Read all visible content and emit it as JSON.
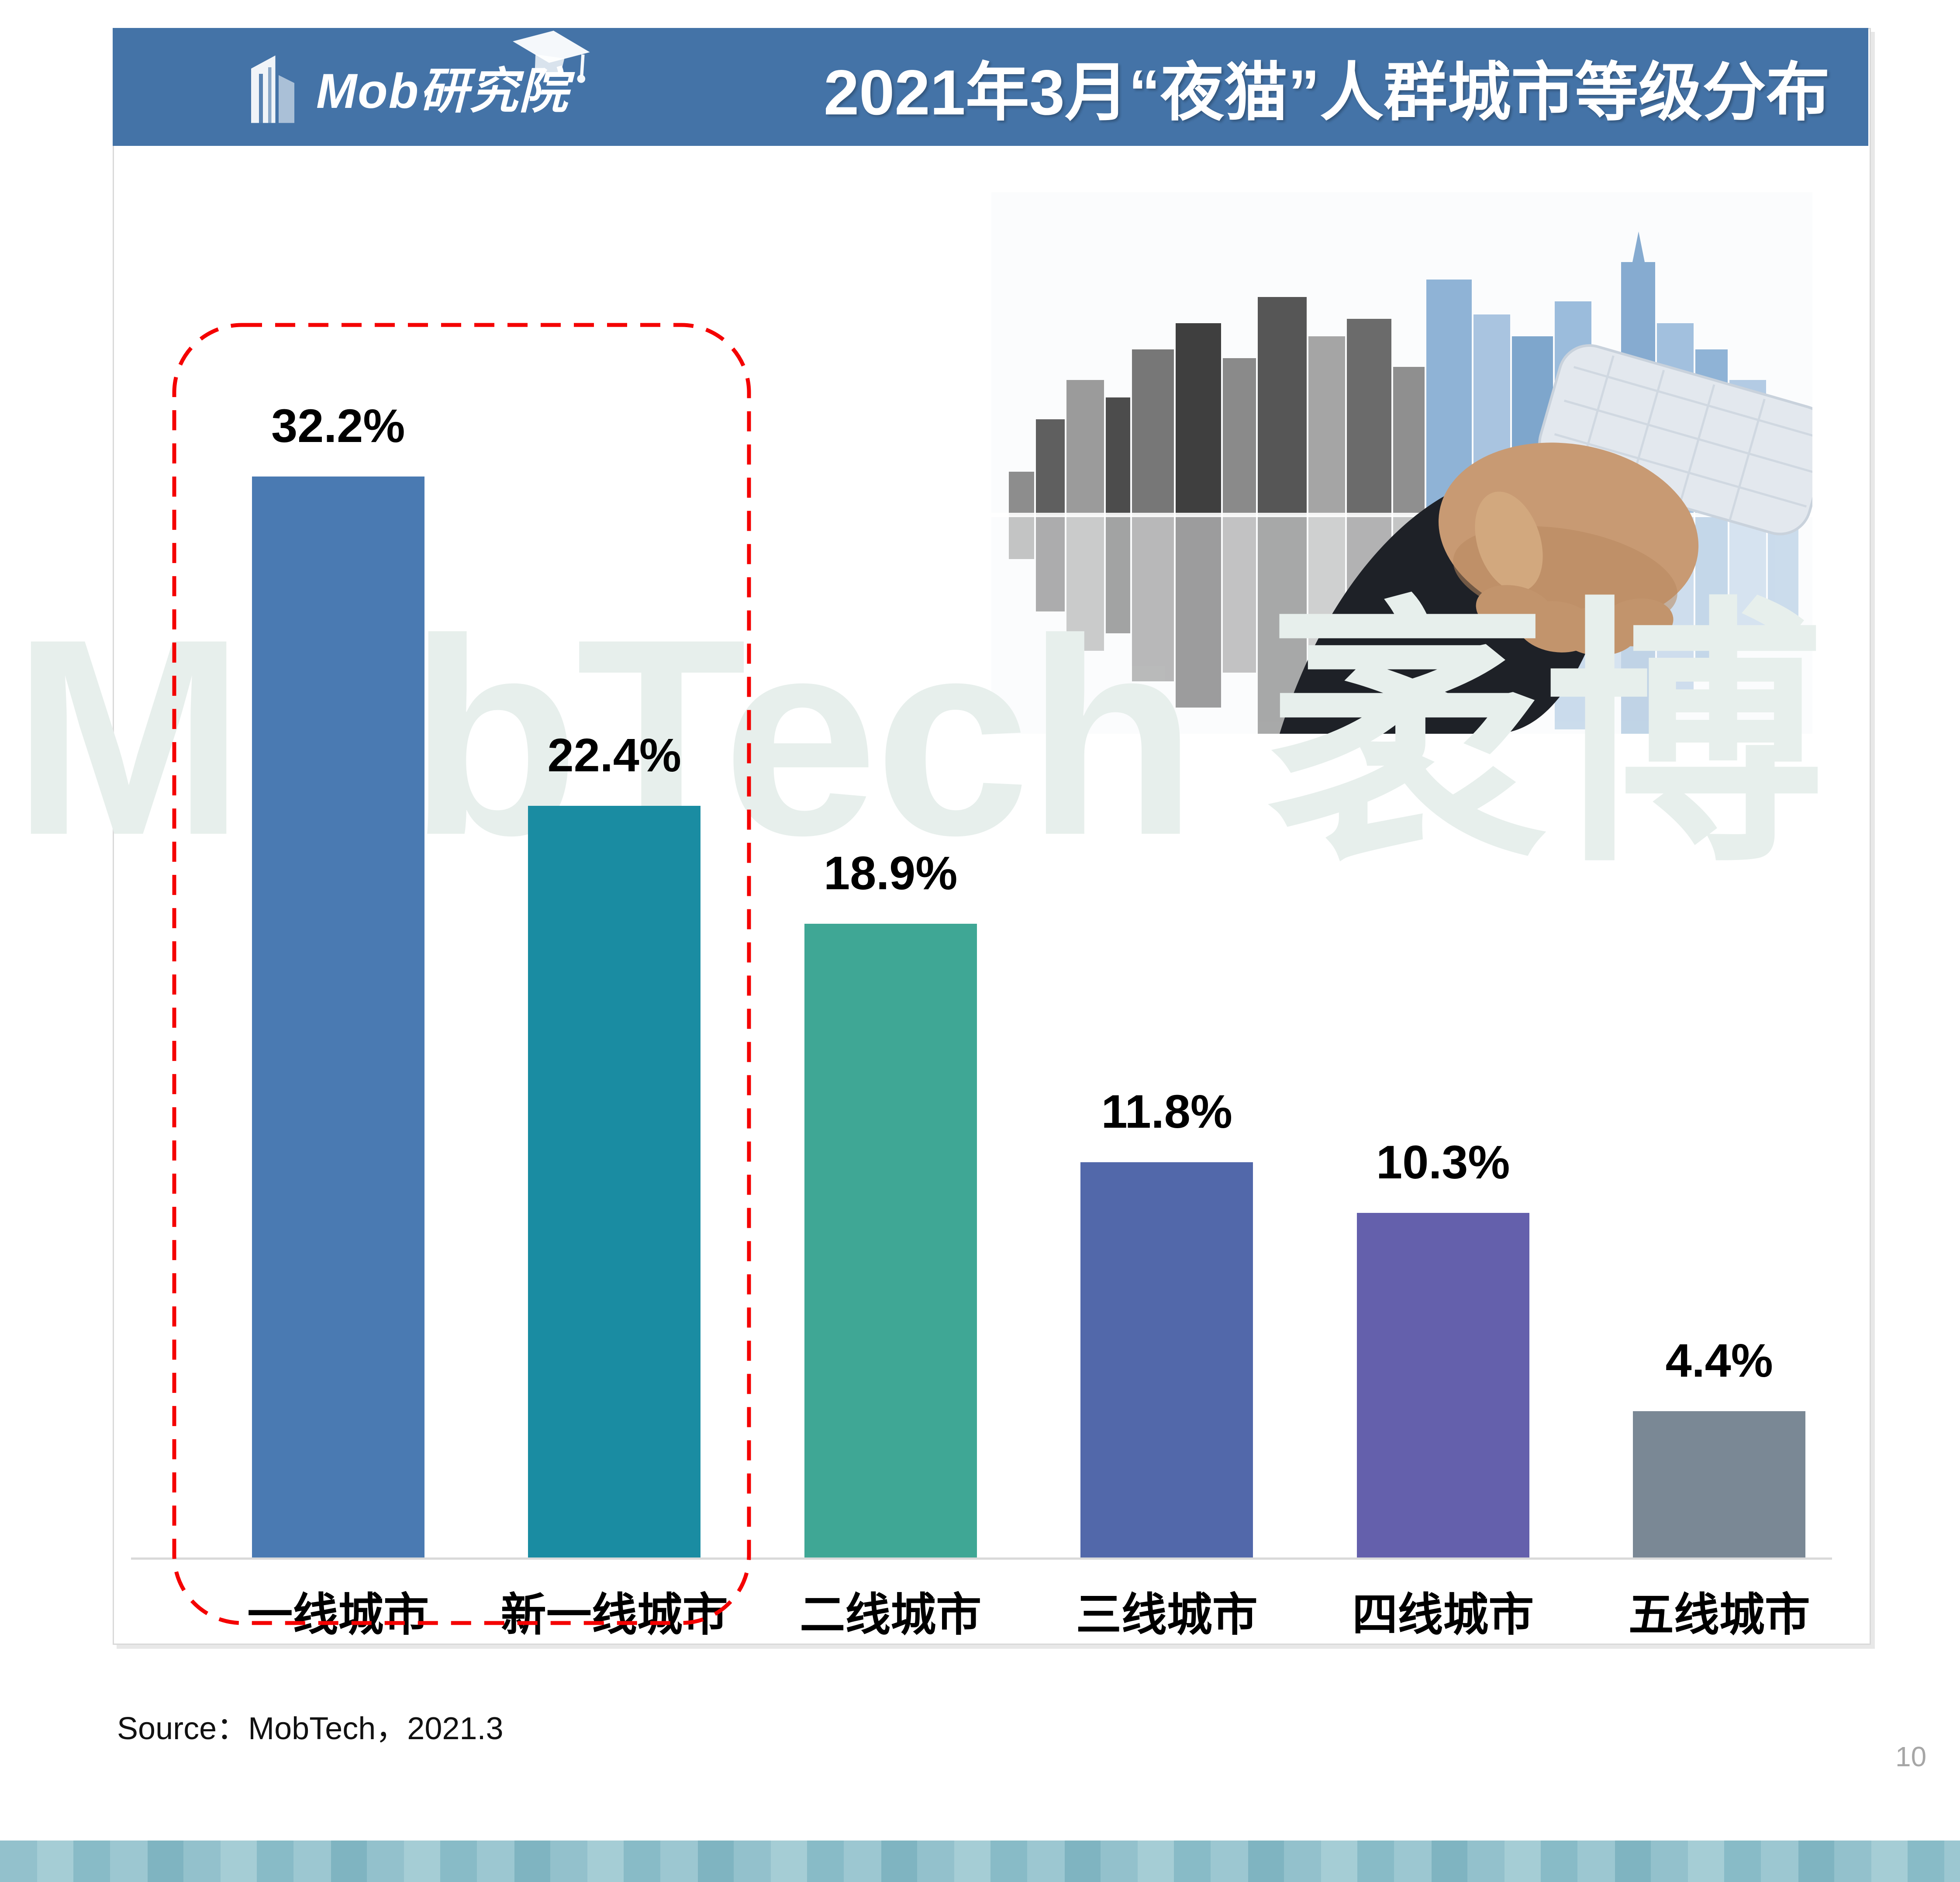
{
  "header": {
    "logo_text": "Mob研究院",
    "title": "2021年3月“夜猫”人群城市等级分布"
  },
  "chart_data": {
    "type": "bar",
    "title": "2021年3月“夜猫”人群城市等级分布",
    "categories": [
      "一线城市",
      "新一线城市",
      "二线城市",
      "三线城市",
      "四线城市",
      "五线城市"
    ],
    "values": [
      32.2,
      22.4,
      18.9,
      11.8,
      10.3,
      4.4
    ],
    "value_labels": [
      "32.2%",
      "22.4%",
      "18.9%",
      "11.8%",
      "10.3%",
      "4.4%"
    ],
    "bar_colors": [
      "#4a7ab2",
      "#1a8ca2",
      "#3fa795",
      "#5268aa",
      "#6460ac",
      "#7a8895"
    ],
    "xlabel": "",
    "ylabel": "",
    "ylim": [
      0,
      35
    ],
    "grid": false,
    "legend": false,
    "highlight_box": {
      "categories": [
        "一线城市",
        "新一线城市"
      ],
      "style": "dashed",
      "color": "#f40000"
    }
  },
  "watermark": {
    "text": "MobTech 袤博",
    "color": "#e7efec"
  },
  "footer": {
    "source": "Source：MobTech，2021.3",
    "page_number": "10"
  },
  "colors": {
    "header_bg": "#4473a7",
    "baseline": "#d9d9d9",
    "stripe_band": [
      "#93c1cc",
      "#a5cdd5",
      "#88bbc7",
      "#9cc7d1",
      "#7fb4c1"
    ]
  },
  "icons": {
    "logo_building_icon": "abstract building",
    "graduation_cap_icon": "graduation cap",
    "handshake_city_image": "mirrored city skyline with business handshake"
  }
}
